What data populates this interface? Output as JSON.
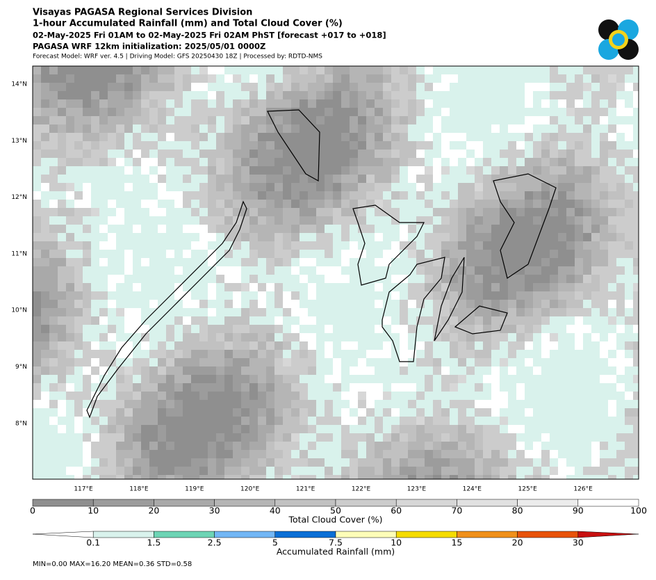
{
  "header": {
    "lines": [
      "Visayas PAGASA Regional Services Division",
      "1-hour Accumulated Rainfall (mm) and Total Cloud Cover (%)",
      "02-May-2025 Fri 01AM to 02-May-2025 Fri 02AM PhST [forecast +017 to +018]",
      "PAGASA WRF 12km initialization: 2025/05/01 0000Z",
      "Forecast Model: WRF ver. 4.5 | Driving Model: GFS 20250430 18Z | Processed by: RDTD-NMS"
    ]
  },
  "map": {
    "lon_labels": [
      "117°E",
      "118°E",
      "119°E",
      "120°E",
      "121°E",
      "122°E",
      "123°E",
      "124°E",
      "125°E",
      "126°E"
    ],
    "lat_labels": [
      "14°N",
      "13°N",
      "12°N",
      "11°N",
      "10°N",
      "9°N",
      "8°N"
    ]
  },
  "cloud_colorbar": {
    "label": "Total Cloud Cover (%)",
    "ticks": [
      0,
      10,
      20,
      30,
      40,
      50,
      60,
      70,
      80,
      90,
      100
    ],
    "colors": [
      "#8f8f8f",
      "#9c9c9c",
      "#a9a9a9",
      "#b5b5b5",
      "#c1c1c1",
      "#cccccc",
      "#d7d7d7",
      "#e1e1e1",
      "#ececec",
      "#ffffff"
    ]
  },
  "rain_colorbar": {
    "label": "Accumulated Rainfall (mm)",
    "ticks": [
      0.1,
      1.5,
      2.5,
      5,
      7.5,
      10,
      15,
      20,
      30
    ],
    "colors": [
      "#d9f2ec",
      "#6dd4b4",
      "#72b6f5",
      "#0b6fd6",
      "#fdfdb8",
      "#f5dc00",
      "#f0901a",
      "#e8530a"
    ],
    "under_color": "#ffffff",
    "over_color": "#c81010"
  },
  "stats": "MIN=0.00   MAX=16.20   MEAN=0.36   STD=0.58"
}
